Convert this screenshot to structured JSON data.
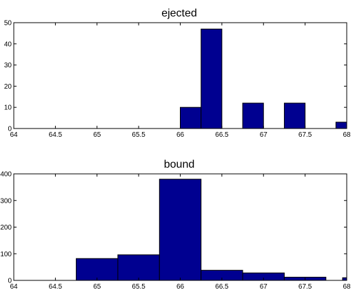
{
  "chart_data": [
    {
      "type": "bar",
      "title": "ejected",
      "xlabel": "",
      "ylabel": "",
      "xlim": [
        64,
        68
      ],
      "ylim": [
        0,
        50
      ],
      "xticks": [
        "64",
        "64.5",
        "65",
        "65.5",
        "66",
        "66.5",
        "67",
        "67.5",
        "68"
      ],
      "yticks": [
        "0",
        "10",
        "20",
        "30",
        "40",
        "50"
      ],
      "bar_color": "#000090",
      "bins": [
        {
          "x0": 66.0,
          "x1": 66.25,
          "value": 10
        },
        {
          "x0": 66.25,
          "x1": 66.5,
          "value": 47
        },
        {
          "x0": 66.75,
          "x1": 67.0,
          "value": 12
        },
        {
          "x0": 67.25,
          "x1": 67.5,
          "value": 12
        },
        {
          "x0": 67.87,
          "x1": 68.0,
          "value": 3
        }
      ]
    },
    {
      "type": "bar",
      "title": "bound",
      "xlabel": "",
      "ylabel": "",
      "xlim": [
        64,
        68
      ],
      "ylim": [
        0,
        400
      ],
      "xticks": [
        "64",
        "64.5",
        "65",
        "65.5",
        "66",
        "66.5",
        "67",
        "67.5",
        "68"
      ],
      "yticks": [
        "0",
        "100",
        "200",
        "300",
        "400"
      ],
      "bar_color": "#000090",
      "bins": [
        {
          "x0": 64.75,
          "x1": 65.25,
          "value": 82
        },
        {
          "x0": 65.25,
          "x1": 65.75,
          "value": 96
        },
        {
          "x0": 65.75,
          "x1": 66.25,
          "value": 380
        },
        {
          "x0": 66.25,
          "x1": 66.75,
          "value": 38
        },
        {
          "x0": 66.75,
          "x1": 67.25,
          "value": 28
        },
        {
          "x0": 67.25,
          "x1": 67.75,
          "value": 12
        },
        {
          "x0": 67.95,
          "x1": 68.0,
          "value": 10
        }
      ]
    }
  ]
}
